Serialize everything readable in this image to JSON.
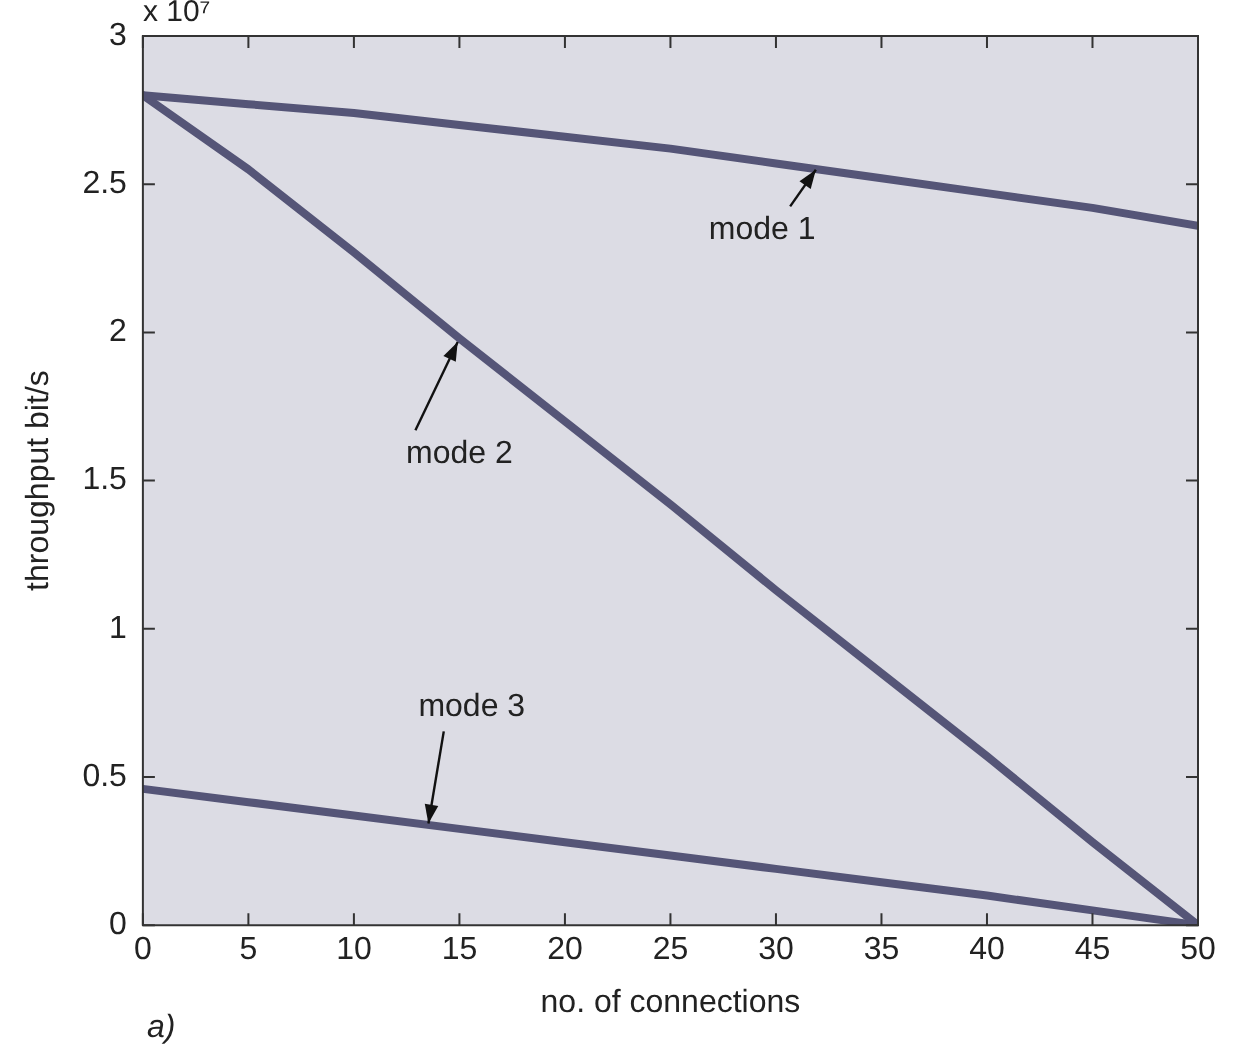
{
  "chart_data": {
    "type": "line",
    "xlabel": "no. of connections",
    "ylabel": "throughput bit/s",
    "xlim": [
      0,
      50
    ],
    "xticks": [
      0,
      5,
      10,
      15,
      20,
      25,
      30,
      35,
      40,
      45,
      50
    ],
    "ylim": [
      0,
      3
    ],
    "yticks": [
      0,
      0.5,
      1,
      1.5,
      2,
      2.5,
      3
    ],
    "grid": false,
    "legend": false,
    "marker": "none",
    "line_style": "solid",
    "x": [
      0,
      5,
      10,
      15,
      20,
      25,
      30,
      35,
      40,
      45,
      50
    ],
    "series": [
      {
        "color": "#555577",
        "values": [
          2.8,
          2.77,
          2.74,
          2.7,
          2.66,
          2.62,
          2.57,
          2.52,
          2.47,
          2.42,
          2.36
        ]
      },
      {
        "color": "#555577",
        "values": [
          2.8,
          2.55,
          2.27,
          1.98,
          1.7,
          1.42,
          1.13,
          0.85,
          0.57,
          0.28,
          0
        ]
      },
      {
        "color": "#555577",
        "values": [
          0.46,
          0.415,
          0.37,
          0.325,
          0.28,
          0.235,
          0.19,
          0.145,
          0.1,
          0.05,
          0
        ]
      }
    ],
    "annotations": [
      {
        "text": "mode 1",
        "x": 32,
        "y": 2.56
      },
      {
        "text": "mode 2",
        "x": 15,
        "y": 1.98
      },
      {
        "text": "mode 3",
        "x": 13.5,
        "y": 0.33
      },
      "x 10⁷",
      "a)"
    ]
  }
}
